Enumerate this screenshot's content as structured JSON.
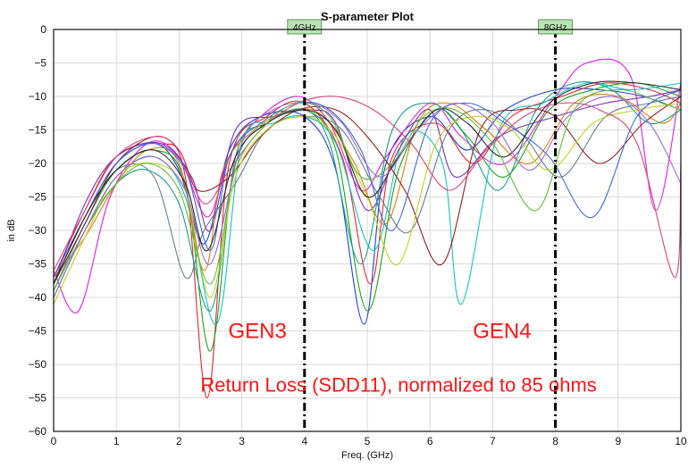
{
  "chart_data": {
    "type": "line",
    "title": "S-parameter Plot",
    "xlabel": "Freq. (GHz)",
    "ylabel": "in dB",
    "xlim": [
      0,
      10
    ],
    "ylim": [
      -60,
      0
    ],
    "xticks": [
      0,
      1,
      2,
      3,
      4,
      5,
      6,
      7,
      8,
      9,
      10
    ],
    "yticks": [
      0,
      -5,
      -10,
      -15,
      -20,
      -25,
      -30,
      -35,
      -40,
      -45,
      -50,
      -55,
      -60
    ],
    "grid": true,
    "markers": [
      {
        "x": 4,
        "label": "4GHz"
      },
      {
        "x": 8,
        "label": "8GHz"
      }
    ],
    "annotations": [
      {
        "text": "GEN3",
        "x": 3.25,
        "y": -45
      },
      {
        "text": "GEN4",
        "x": 7.15,
        "y": -45
      },
      {
        "text": "Return Loss (SDD11), normalized to 85 ohms",
        "x": 5.5,
        "y": -53
      }
    ],
    "series": [
      {
        "color": "#1f3fd6",
        "x": [
          0,
          0.5,
          1,
          1.6,
          2.0,
          2.4,
          2.8,
          3.3,
          4.0,
          4.5,
          4.95,
          5.3,
          6,
          6.6,
          7.2,
          8,
          8.7,
          9.4,
          10
        ],
        "y": [
          -38,
          -28,
          -20,
          -17,
          -21,
          -32,
          -18,
          -13,
          -13,
          -21,
          -44,
          -20,
          -13,
          -18,
          -12,
          -9,
          -9,
          -10,
          -12
        ]
      },
      {
        "color": "#e8262a",
        "x": [
          0,
          0.5,
          1,
          1.7,
          2.1,
          2.45,
          2.8,
          3.4,
          4.0,
          4.6,
          5.05,
          5.4,
          6.1,
          6.7,
          7.3,
          8.1,
          8.8,
          9.5,
          10
        ],
        "y": [
          -37,
          -27,
          -19,
          -17,
          -22,
          -55,
          -20,
          -13,
          -11,
          -19,
          -38,
          -19,
          -14,
          -20,
          -13,
          -10,
          -8,
          -9,
          -11
        ]
      },
      {
        "color": "#1aa31a",
        "x": [
          0,
          0.5,
          1,
          1.6,
          2.1,
          2.5,
          2.9,
          3.4,
          4.0,
          4.5,
          5.0,
          5.5,
          6.1,
          6.6,
          7.2,
          7.9,
          8.6,
          9.3,
          10
        ],
        "y": [
          -39,
          -29,
          -21,
          -18,
          -23,
          -48,
          -19,
          -14,
          -12,
          -18,
          -42,
          -21,
          -12,
          -16,
          -22,
          -12,
          -9,
          -8,
          -10
        ]
      },
      {
        "color": "#e11fd8",
        "x": [
          0,
          0.4,
          0.9,
          1.5,
          2.0,
          2.45,
          2.8,
          3.3,
          3.9,
          4.4,
          4.9,
          5.3,
          6,
          6.5,
          7.2,
          8,
          8.5,
          9.2,
          9.6,
          10
        ],
        "y": [
          -36,
          -42,
          -25,
          -17,
          -19,
          -28,
          -19,
          -13,
          -10,
          -14,
          -24,
          -19,
          -11,
          -16,
          -20,
          -10,
          -5,
          -7,
          -27,
          -8
        ]
      },
      {
        "color": "#12c3c8",
        "x": [
          0,
          0.5,
          1,
          1.6,
          2.1,
          2.6,
          3.0,
          3.5,
          4.0,
          4.5,
          5.1,
          5.6,
          6.2,
          6.5,
          7.1,
          7.8,
          8.5,
          9.2,
          10
        ],
        "y": [
          -40,
          -30,
          -22,
          -19,
          -25,
          -44,
          -17,
          -14,
          -13,
          -17,
          -33,
          -16,
          -20,
          -41,
          -15,
          -11,
          -8,
          -9,
          -8
        ]
      },
      {
        "color": "#7a2fb5",
        "x": [
          0,
          0.5,
          1,
          1.7,
          2.2,
          2.5,
          2.9,
          3.5,
          4.1,
          4.5,
          5.0,
          5.5,
          6.0,
          6.4,
          7.1,
          8.0,
          8.8,
          9.5,
          10
        ],
        "y": [
          -38,
          -26,
          -19,
          -17,
          -22,
          -30,
          -15,
          -13,
          -12,
          -14,
          -27,
          -18,
          -12,
          -22,
          -16,
          -13,
          -11,
          -10,
          -9
        ]
      },
      {
        "color": "#e07a12",
        "x": [
          0,
          0.5,
          1,
          1.5,
          2.0,
          2.4,
          2.7,
          3.2,
          3.8,
          4.3,
          4.8,
          5.3,
          5.8,
          6.3,
          6.9,
          7.6,
          8.3,
          9.0,
          9.7,
          10
        ],
        "y": [
          -37,
          -31,
          -23,
          -18,
          -20,
          -36,
          -21,
          -15,
          -12,
          -13,
          -20,
          -29,
          -14,
          -11,
          -15,
          -20,
          -11,
          -10,
          -14,
          -11
        ]
      },
      {
        "color": "#6b7c8f",
        "x": [
          0,
          0.5,
          1,
          1.6,
          2.1,
          2.4,
          2.9,
          3.4,
          4.0,
          4.6,
          5.2,
          5.7,
          6.3,
          6.9,
          7.5,
          8.1,
          8.8,
          9.5,
          10
        ],
        "y": [
          -39,
          -29,
          -21,
          -22,
          -37,
          -30,
          -23,
          -15,
          -13,
          -15,
          -25,
          -30,
          -15,
          -12,
          -16,
          -22,
          -13,
          -11,
          -10
        ]
      },
      {
        "color": "#8b2222",
        "x": [
          0,
          0.5,
          1,
          1.6,
          2.0,
          2.3,
          2.8,
          3.3,
          3.9,
          4.5,
          5.0,
          5.6,
          6.2,
          6.8,
          7.4,
          8.0,
          8.7,
          9.4,
          10
        ],
        "y": [
          -38,
          -29,
          -20,
          -16,
          -18,
          -24,
          -22,
          -16,
          -12,
          -12,
          -16,
          -24,
          -35,
          -15,
          -12,
          -13,
          -20,
          -14,
          -10
        ]
      },
      {
        "color": "#1a9e8c",
        "x": [
          0,
          0.5,
          1,
          1.5,
          2.0,
          2.5,
          2.9,
          3.4,
          4.0,
          4.4,
          4.9,
          5.4,
          6.0,
          6.5,
          7.1,
          7.7,
          8.3,
          8.9,
          9.5,
          10
        ],
        "y": [
          -40,
          -30,
          -23,
          -21,
          -26,
          -42,
          -20,
          -14,
          -12,
          -17,
          -35,
          -15,
          -11,
          -15,
          -24,
          -12,
          -8,
          -9,
          -14,
          -12
        ]
      },
      {
        "color": "#c8d020",
        "x": [
          0,
          0.5,
          1,
          1.6,
          2.1,
          2.5,
          2.9,
          3.4,
          4.0,
          4.5,
          5.0,
          5.5,
          6.1,
          6.7,
          7.3,
          7.9,
          8.6,
          9.3,
          10
        ],
        "y": [
          -41,
          -31,
          -22,
          -20,
          -24,
          -40,
          -22,
          -15,
          -13,
          -16,
          -25,
          -35,
          -17,
          -13,
          -15,
          -21,
          -14,
          -12,
          -11
        ]
      },
      {
        "color": "#3a6bd8",
        "x": [
          0,
          0.5,
          1,
          1.6,
          2.1,
          2.5,
          2.8,
          3.3,
          3.9,
          4.4,
          4.9,
          5.4,
          6.0,
          6.6,
          7.2,
          7.9,
          8.6,
          9.3,
          10
        ],
        "y": [
          -37,
          -28,
          -20,
          -17,
          -21,
          -33,
          -19,
          -14,
          -11,
          -12,
          -18,
          -30,
          -14,
          -11,
          -14,
          -19,
          -28,
          -13,
          -9
        ]
      },
      {
        "color": "#d6457e",
        "x": [
          0,
          0.5,
          1,
          1.6,
          2.0,
          2.4,
          2.8,
          3.3,
          3.9,
          4.5,
          5.1,
          5.7,
          6.3,
          6.9,
          7.5,
          8.1,
          8.7,
          9.3,
          9.9,
          10
        ],
        "y": [
          -36,
          -27,
          -19,
          -16,
          -18,
          -26,
          -21,
          -15,
          -11,
          -10,
          -12,
          -17,
          -24,
          -18,
          -13,
          -11,
          -12,
          -17,
          -37,
          -20
        ]
      },
      {
        "color": "#2a2a2a",
        "x": [
          0,
          0.5,
          1,
          1.6,
          2.1,
          2.45,
          2.9,
          3.4,
          4.0,
          4.5,
          5.0,
          5.5,
          6.1,
          6.6,
          7.2,
          7.9,
          8.6,
          9.3,
          10
        ],
        "y": [
          -38,
          -28,
          -21,
          -18,
          -23,
          -33,
          -19,
          -14,
          -12,
          -15,
          -25,
          -19,
          -12,
          -14,
          -19,
          -11,
          -8,
          -8,
          -9
        ]
      },
      {
        "color": "#5fbf3a",
        "x": [
          0,
          0.5,
          1,
          1.5,
          2.0,
          2.5,
          2.9,
          3.4,
          3.9,
          4.4,
          4.9,
          5.4,
          5.9,
          6.4,
          7.0,
          7.7,
          8.3,
          9.0,
          9.7,
          10
        ],
        "y": [
          -39,
          -30,
          -23,
          -20,
          -24,
          -38,
          -21,
          -14,
          -11,
          -13,
          -22,
          -20,
          -13,
          -12,
          -17,
          -27,
          -12,
          -9,
          -11,
          -12
        ]
      },
      {
        "color": "#9a6ad8",
        "x": [
          0,
          0.5,
          1,
          1.6,
          2.1,
          2.5,
          3.0,
          3.5,
          4.1,
          4.6,
          5.2,
          5.8,
          6.4,
          7.0,
          7.6,
          8.2,
          8.9,
          9.5,
          10
        ],
        "y": [
          -40,
          -30,
          -22,
          -19,
          -24,
          -35,
          -17,
          -12,
          -11,
          -14,
          -22,
          -15,
          -11,
          -14,
          -21,
          -13,
          -10,
          -14,
          -23
        ]
      }
    ]
  }
}
